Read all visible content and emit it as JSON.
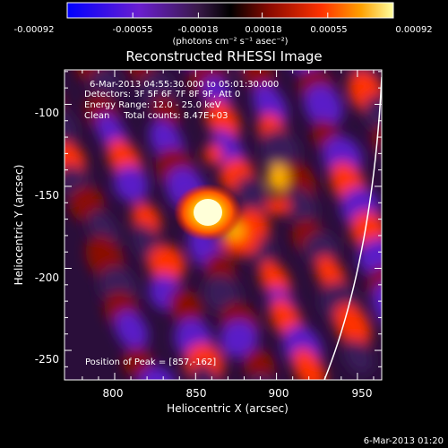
{
  "colorbar": {
    "tick_labels": [
      "-0.00092",
      "-0.00055",
      "-0.00018",
      "0.00018",
      "0.00055",
      "0.00092"
    ],
    "unit_label": "(photons cm⁻² s⁻¹ asec⁻²)",
    "range": [
      -0.00092,
      0.00092
    ]
  },
  "chart_data": {
    "type": "heatmap",
    "title": "Reconstructed RHESSI Image",
    "xlabel": "Heliocentric X (arcsec)",
    "ylabel": "Heliocentric Y (arcsec)",
    "xlim": [
      769,
      965
    ],
    "ylim": [
      -268,
      -79
    ],
    "x_ticks": [
      800,
      850,
      900,
      950
    ],
    "y_ticks": [
      -100,
      -150,
      -200,
      -250
    ],
    "annotations": [
      "6-Mar-2013 04:55:30.000 to 05:01:30.000",
      "Detectors: 3F 5F 6F 7F 8F 9F, Att 0",
      "Energy Range: 12.0 - 25.0 keV",
      "Clean     Total counts: 8.47E+03"
    ],
    "peak_label": "Position of Peak = [857,-162]",
    "peak": [
      857,
      -162
    ],
    "footer_timestamp": "6-Mar-2013 01:20",
    "colors": [
      "#0000ff",
      "#5a1ec8",
      "#3a1a5a",
      "#000000",
      "#8a0a00",
      "#ff3200",
      "#ffb000",
      "#ffffff"
    ]
  }
}
